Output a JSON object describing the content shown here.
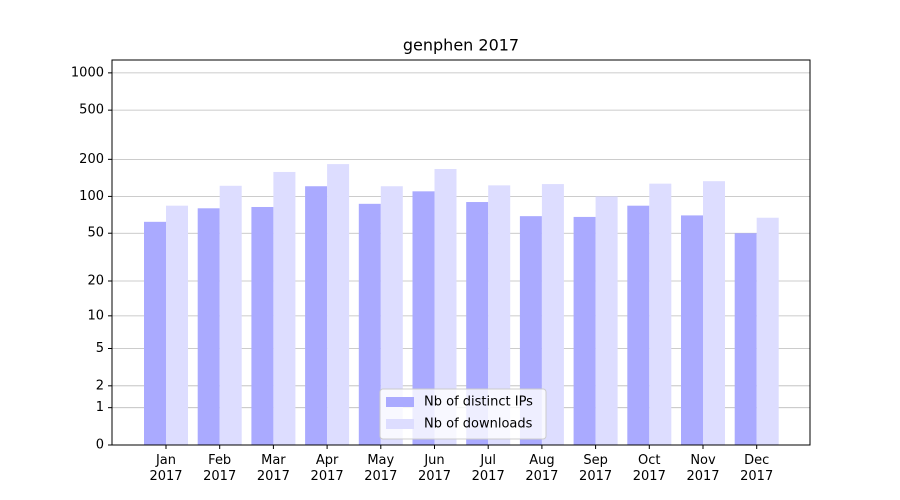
{
  "chart_data": {
    "type": "bar",
    "title": "genphen 2017",
    "categories": [
      "Jan 2017",
      "Feb 2017",
      "Mar 2017",
      "Apr 2017",
      "May 2017",
      "Jun 2017",
      "Jul 2017",
      "Aug 2017",
      "Sep 2017",
      "Oct 2017",
      "Nov 2017",
      "Dec 2017"
    ],
    "series": [
      {
        "name": "Nb of distinct IPs",
        "color": "#aaaaff",
        "values": [
          62,
          80,
          82,
          121,
          87,
          110,
          90,
          69,
          68,
          84,
          70,
          50
        ]
      },
      {
        "name": "Nb of downloads",
        "color": "#ddddff",
        "values": [
          84,
          122,
          158,
          183,
          121,
          167,
          123,
          126,
          100,
          127,
          133,
          67
        ]
      }
    ],
    "yscale": "symlog",
    "ylim": [
      0,
      1270
    ],
    "yticks": [
      0,
      1,
      2,
      5,
      10,
      20,
      50,
      100,
      200,
      500,
      1000
    ],
    "grid": true,
    "legend": "lower center"
  }
}
